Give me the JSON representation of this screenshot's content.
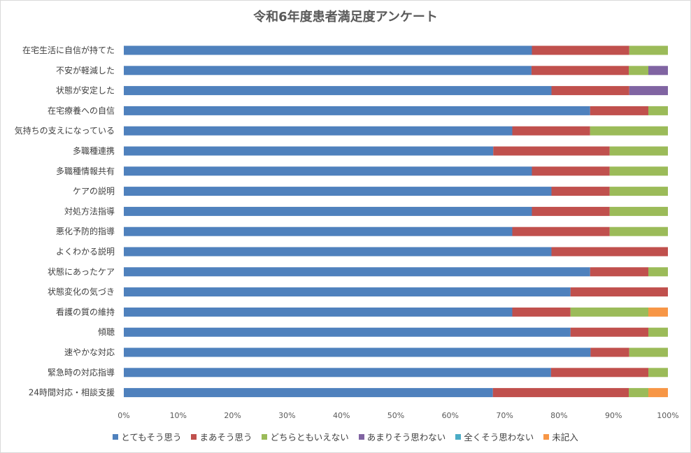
{
  "chart_data": {
    "type": "bar",
    "orientation": "horizontal",
    "stacked": "percent",
    "title": "令和6年度患者満足度アンケート",
    "categories": [
      "在宅生活に自信が持てた",
      "不安が軽減した",
      "状態が安定した",
      "在宅療養への自信",
      "気持ちの支えになっている",
      "多職種連携",
      "多職種情報共有",
      "ケアの説明",
      "対処方法指導",
      "悪化予防的指導",
      "よくわかる説明",
      "状態にあったケア",
      "状態変化の気づき",
      "看護の質の維持",
      "傾聴",
      "速やかな対応",
      "緊急時の対応指導",
      "24時間対応・相談支援"
    ],
    "series": [
      {
        "name": "とてもそう思う",
        "color": "#4f81bd",
        "values": [
          75,
          75,
          78.6,
          85.7,
          71.4,
          67.9,
          75,
          78.6,
          75,
          71.4,
          78.6,
          85.7,
          82.1,
          71.4,
          82.1,
          85.7,
          78.6,
          67.9
        ]
      },
      {
        "name": "まあそう思う",
        "color": "#c0504d",
        "values": [
          17.9,
          17.9,
          14.3,
          10.7,
          14.3,
          21.4,
          14.3,
          10.7,
          14.3,
          17.9,
          21.4,
          10.7,
          17.9,
          10.7,
          14.3,
          7.1,
          17.9,
          25
        ]
      },
      {
        "name": "どちらともいえない",
        "color": "#9bbb59",
        "values": [
          7.1,
          3.6,
          0,
          3.6,
          14.3,
          10.7,
          10.7,
          10.7,
          10.7,
          10.7,
          0,
          3.6,
          0,
          14.3,
          3.6,
          7.1,
          3.6,
          3.6
        ]
      },
      {
        "name": "あまりそう思わない",
        "color": "#8064a2",
        "values": [
          0,
          3.6,
          7.1,
          0,
          0,
          0,
          0,
          0,
          0,
          0,
          0,
          0,
          0,
          0,
          0,
          0,
          0,
          0
        ]
      },
      {
        "name": "全くそう思わない",
        "color": "#4bacc6",
        "values": [
          0,
          0,
          0,
          0,
          0,
          0,
          0,
          0,
          0,
          0,
          0,
          0,
          0,
          0,
          0,
          0,
          0,
          0
        ]
      },
      {
        "name": "未記入",
        "color": "#f79646",
        "values": [
          0,
          0,
          0,
          0,
          0,
          0,
          0,
          0,
          0,
          0,
          0,
          0,
          0,
          3.6,
          0,
          0,
          0,
          3.6
        ]
      }
    ],
    "xlim": [
      0,
      100
    ],
    "x_ticks": [
      "0%",
      "10%",
      "20%",
      "30%",
      "40%",
      "50%",
      "60%",
      "70%",
      "80%",
      "90%",
      "100%"
    ],
    "grid": false,
    "legend_position": "bottom"
  }
}
